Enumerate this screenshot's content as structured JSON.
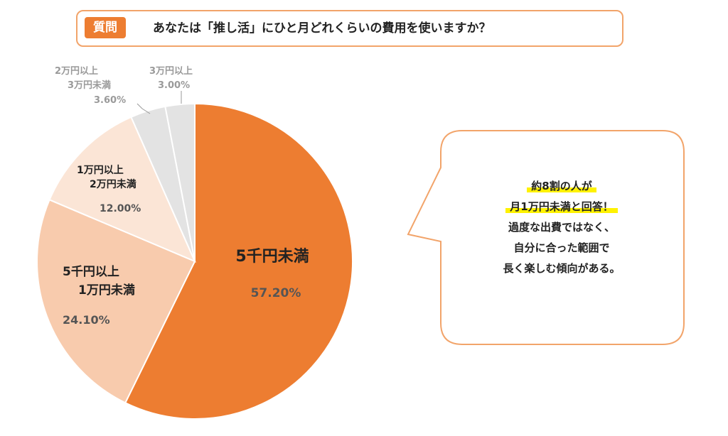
{
  "question": {
    "badge": "質問",
    "text": "あなたは「推し活」にひと月どれくらいの費用を使いますか？"
  },
  "chart_data": {
    "type": "pie",
    "title": "",
    "slices": [
      {
        "label_lines": [
          "5千円未満"
        ],
        "value": 57.2,
        "value_label": "57.20%",
        "color": "#ed7d31"
      },
      {
        "label_lines": [
          "5千円以上",
          "1万円未満"
        ],
        "value": 24.1,
        "value_label": "24.10%",
        "color": "#f8cbad"
      },
      {
        "label_lines": [
          "1万円以上",
          "2万円未満"
        ],
        "value": 12.0,
        "value_label": "12.00%",
        "color": "#fbe5d6"
      },
      {
        "label_lines": [
          "2万円以上",
          "3万円未満"
        ],
        "value": 3.6,
        "value_label": "3.60%",
        "color": "#e3e3e3"
      },
      {
        "label_lines": [
          "3万円以上"
        ],
        "value": 3.0,
        "value_label": "3.00%",
        "color": "#e3e3e3"
      }
    ]
  },
  "callout": {
    "lines": [
      "約8割の人が",
      "月1万円未満と回答！",
      "過度な出費ではなく、",
      "自分に合った範囲で",
      "長く楽しむ傾向がある。"
    ],
    "highlighted": [
      true,
      true,
      false,
      false,
      false
    ],
    "highlight_color": "#fff200",
    "border_color": "#f2a46a"
  }
}
